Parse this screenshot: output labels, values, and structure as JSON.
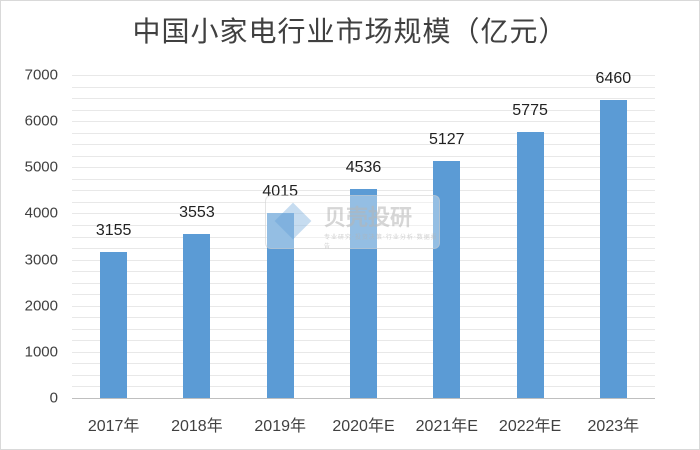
{
  "chart_data": {
    "type": "bar",
    "title": "中国小家电行业市场规模（亿元）",
    "xlabel": "",
    "ylabel": "",
    "categories": [
      "2017年",
      "2018年",
      "2019年",
      "2020年E",
      "2021年E",
      "2022年E",
      "2023年"
    ],
    "values": [
      3155,
      3553,
      4015,
      4536,
      5127,
      5775,
      6460
    ],
    "ylim": [
      0,
      7000
    ],
    "yticks": [
      0,
      1000,
      2000,
      3000,
      4000,
      5000,
      6000,
      7000
    ],
    "grid": true,
    "legend": null,
    "data_labels": true,
    "bar_color": "#5b9bd5"
  },
  "title": "中国小家电行业市场规模（亿元）",
  "yaxis": {
    "ticks": [
      "0",
      "1000",
      "2000",
      "3000",
      "4000",
      "5000",
      "6000",
      "7000"
    ]
  },
  "xaxis": {
    "ticks": [
      "2017年",
      "2018年",
      "2019年",
      "2020年E",
      "2021年E",
      "2022年E",
      "2023年"
    ]
  },
  "bars": [
    {
      "label": "3155",
      "value": 3155
    },
    {
      "label": "3553",
      "value": 3553
    },
    {
      "label": "4015",
      "value": 4015
    },
    {
      "label": "4536",
      "value": 4536
    },
    {
      "label": "5127",
      "value": 5127
    },
    {
      "label": "5775",
      "value": 5775
    },
    {
      "label": "6460",
      "value": 6460
    }
  ],
  "watermark": {
    "text": "贝壳投研",
    "subtext": "专业研究·投资决策·行业分析·数据报告"
  }
}
